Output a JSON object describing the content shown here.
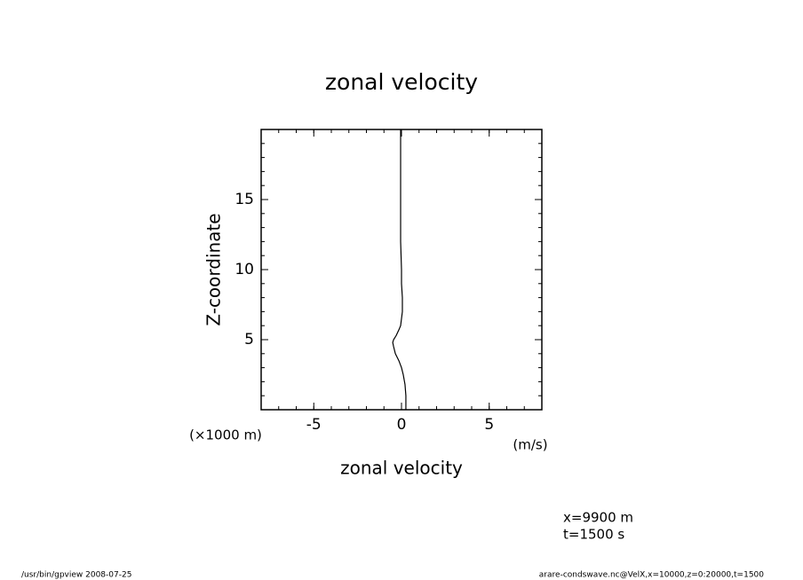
{
  "chart_data": {
    "type": "line",
    "title": "zonal velocity",
    "x_label": "zonal velocity",
    "x_unit": "(m/s)",
    "y_label": "Z-coordinate",
    "y_unit": "(×1000 m)",
    "xlim": [
      -8,
      8
    ],
    "ylim": [
      0,
      20
    ],
    "xticks": [
      -5,
      0,
      5
    ],
    "yticks": [
      5,
      10,
      15
    ],
    "xminorticks": [
      -8,
      -7,
      -6,
      -5,
      -4,
      -3,
      -2,
      -1,
      0,
      1,
      2,
      3,
      4,
      5,
      6,
      7,
      8
    ],
    "yminorticks": [
      1,
      2,
      3,
      4,
      5,
      6,
      7,
      8,
      9,
      10,
      11,
      12,
      13,
      14,
      15,
      16,
      17,
      18,
      19
    ],
    "y": [
      0,
      1,
      1.8,
      2.5,
      3,
      3.5,
      4,
      4.5,
      4.8,
      5,
      5.3,
      5.7,
      6,
      6.5,
      7,
      8,
      9,
      10,
      12,
      15,
      18,
      20
    ],
    "series": [
      {
        "name": "zonal velocity",
        "color": "#000000",
        "values": [
          0.25,
          0.25,
          0.2,
          0.1,
          0.0,
          -0.15,
          -0.35,
          -0.45,
          -0.5,
          -0.45,
          -0.3,
          -0.15,
          -0.05,
          0.0,
          0.05,
          0.05,
          0.0,
          0.0,
          -0.05,
          -0.05,
          -0.05,
          -0.05
        ]
      }
    ],
    "annotations": [
      "x=9900 m",
      "t=1500 s"
    ],
    "footer_left": "/usr/bin/gpview  2008-07-25",
    "footer_right": "arare-condswave.nc@VelX,x=10000,z=0:20000,t=1500"
  }
}
